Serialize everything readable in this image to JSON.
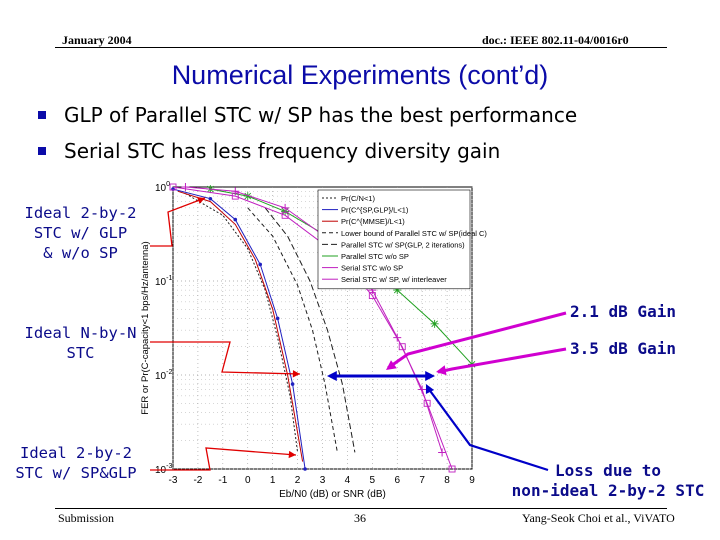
{
  "header": {
    "date": "January 2004",
    "doc_id": "doc.: IEEE 802.11-04/0016r0"
  },
  "slide": {
    "title": "Numerical Experiments (cont’d)",
    "bullets": [
      "GLP of Parallel STC w/ SP has the best performance",
      "Serial STC has less frequency diversity gain"
    ]
  },
  "annotations": {
    "ideal_2by2_glp": [
      "Ideal 2-by-2",
      "STC w/ GLP",
      "& w/o SP"
    ],
    "ideal_nbyn": [
      "Ideal N-by-N",
      "STC"
    ],
    "ideal_2by2_sp": [
      "Ideal 2-by-2",
      "STC w/ SP&GLP"
    ],
    "gain_1": "2.1 dB Gain",
    "gain_2": "3.5 dB Gain",
    "loss": [
      "Loss due to",
      "non-ideal 2-by-2 STC"
    ]
  },
  "chart_data": {
    "type": "line",
    "xlabel": "Eb/N0 (dB) or SNR (dB)",
    "ylabel": "FER or Pr(C-capacity<1 bps/Hz/antenna)",
    "xlim": [
      -3,
      9
    ],
    "ylim": [
      0.001,
      1
    ],
    "y_scale": "log",
    "x_ticks": [
      "-3",
      "-2",
      "-1",
      "0",
      "1",
      "2",
      "3",
      "4",
      "5",
      "6",
      "7",
      "8",
      "9"
    ],
    "y_ticks": [
      {
        "base": "10",
        "exp": "0"
      },
      {
        "base": "10",
        "exp": "-1"
      },
      {
        "base": "10",
        "exp": "-2"
      },
      {
        "base": "10",
        "exp": "-3"
      }
    ],
    "grid": true,
    "legend_position": "top-right",
    "legend": [
      "Pr(C/N<1)",
      "Pr(C^{SP,GLP}/L<1)",
      "Pr(C^{MMSE}/L<1)",
      "Lower bound of Parallel STC w/ SP(ideal C)",
      "Parallel STC w/ SP(GLP, 2 iterations)",
      "Parallel STC w/o SP",
      "Serial STC w/o SP",
      "Serial STC w/ SP, w/ interleaver"
    ],
    "series": [
      {
        "color": "#1e1e1e",
        "dash": "2,2",
        "marker": "none",
        "x": [
          -2.5,
          -1,
          0,
          0.7,
          1.2,
          1.7,
          2.0
        ],
        "y": [
          0.85,
          0.5,
          0.22,
          0.08,
          0.025,
          0.006,
          0.0015
        ]
      },
      {
        "color": "#2020c0",
        "dash": "",
        "marker": "dot",
        "x": [
          -3,
          -1.5,
          -0.5,
          0.5,
          1.2,
          1.8,
          2.3
        ],
        "y": [
          0.95,
          0.75,
          0.45,
          0.15,
          0.04,
          0.008,
          0.001
        ]
      },
      {
        "color": "#c00000",
        "dash": "",
        "marker": "none",
        "x": [
          -2.8,
          -1.5,
          -0.5,
          0.3,
          1.0,
          1.6,
          2.2
        ],
        "y": [
          0.9,
          0.7,
          0.4,
          0.17,
          0.05,
          0.01,
          0.0012
        ]
      },
      {
        "color": "#1e1e1e",
        "dash": "4,3",
        "marker": "none",
        "x": [
          0,
          1.0,
          2.0,
          2.6,
          3.1,
          3.6
        ],
        "y": [
          0.6,
          0.3,
          0.09,
          0.03,
          0.008,
          0.0015
        ]
      },
      {
        "color": "#1e1e1e",
        "dash": "6,3",
        "marker": "none",
        "x": [
          0.7,
          1.6,
          2.5,
          3.2,
          3.8,
          4.3
        ],
        "y": [
          0.6,
          0.3,
          0.1,
          0.03,
          0.008,
          0.0015
        ]
      },
      {
        "color": "#20a020",
        "dash": "",
        "marker": "star",
        "x": [
          -1.5,
          0,
          1.5,
          3,
          4.5,
          6,
          7.5,
          9
        ],
        "y": [
          0.95,
          0.8,
          0.55,
          0.32,
          0.17,
          0.08,
          0.035,
          0.013
        ]
      },
      {
        "color": "#c020c0",
        "dash": "",
        "marker": "plus",
        "x": [
          -2.5,
          -0.5,
          1.5,
          3.5,
          5,
          6,
          7,
          7.8
        ],
        "y": [
          1.0,
          0.9,
          0.6,
          0.25,
          0.08,
          0.025,
          0.007,
          0.0015
        ]
      },
      {
        "color": "#c020c0",
        "dash": "",
        "marker": "square",
        "x": [
          -3,
          -0.5,
          1.5,
          3.5,
          5,
          6.2,
          7.2,
          8.2
        ],
        "y": [
          1.0,
          0.8,
          0.5,
          0.2,
          0.07,
          0.02,
          0.005,
          0.001
        ]
      }
    ]
  },
  "footer": {
    "left": "Submission",
    "page": "36",
    "right": "Yang-Seok Choi et al., ViVATO"
  }
}
